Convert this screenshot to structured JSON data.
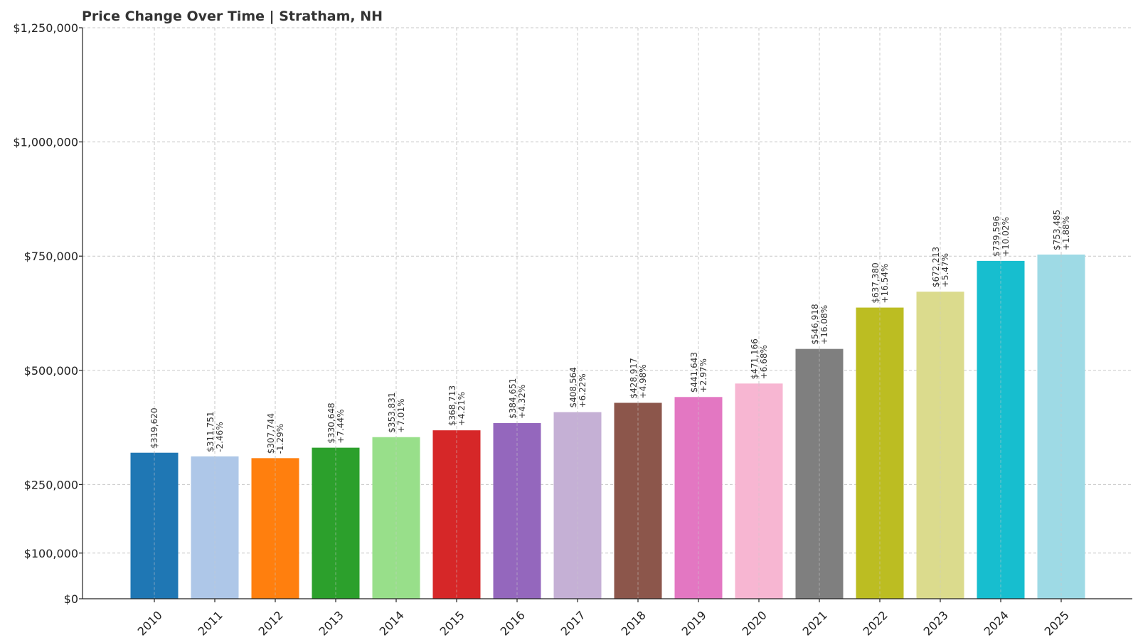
{
  "chart_data": {
    "type": "bar",
    "title": "Price Change Over Time | Stratham, NH",
    "xlabel": "",
    "ylabel": "",
    "categories": [
      "2010",
      "2011",
      "2012",
      "2013",
      "2014",
      "2015",
      "2016",
      "2017",
      "2018",
      "2019",
      "2020",
      "2021",
      "2022",
      "2023",
      "2024",
      "2025"
    ],
    "values": [
      319620,
      311751,
      307744,
      330648,
      353831,
      368713,
      384651,
      408564,
      428917,
      441643,
      471166,
      546918,
      637380,
      672213,
      739596,
      753485
    ],
    "value_labels": [
      "$319,620",
      "$311,751",
      "$307,744",
      "$330,648",
      "$353,831",
      "$368,713",
      "$384,651",
      "$408,564",
      "$428,917",
      "$441,643",
      "$471,166",
      "$546,918",
      "$637,380",
      "$672,213",
      "$739,596",
      "$753,485"
    ],
    "change_labels": [
      "",
      "-2.46%",
      "-1.29%",
      "+7.44%",
      "+7.01%",
      "+4.21%",
      "+4.32%",
      "+6.22%",
      "+4.98%",
      "+2.97%",
      "+6.68%",
      "+16.08%",
      "+16.54%",
      "+5.47%",
      "+10.02%",
      "+1.88%"
    ],
    "colors": [
      "#1f77b4",
      "#aec7e8",
      "#ff7f0e",
      "#2ca02c",
      "#98df8a",
      "#d62728",
      "#9467bd",
      "#c5b0d5",
      "#8c564b",
      "#e377c2",
      "#f7b6d2",
      "#7f7f7f",
      "#bcbd22",
      "#dbdb8d",
      "#17becf",
      "#9edae5"
    ],
    "ylim": [
      0,
      1250000
    ],
    "yticks": [
      0,
      100000,
      250000,
      500000,
      750000,
      1000000,
      1250000
    ],
    "ytick_labels": [
      "$0",
      "$100,000",
      "$250,000",
      "$500,000",
      "$750,000",
      "$1,000,000",
      "$1,250,000"
    ],
    "grid": true,
    "legend": "none"
  }
}
